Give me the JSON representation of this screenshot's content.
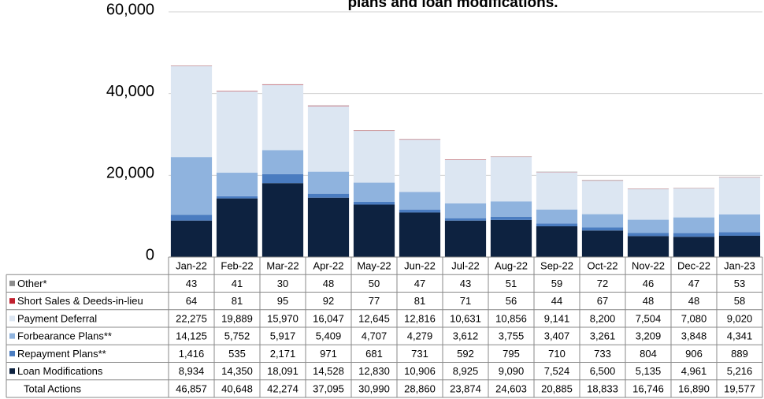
{
  "chart_data": {
    "type": "stacked_bar",
    "title": "plans and loan modifications.",
    "categories": [
      "Jan-22",
      "Feb-22",
      "Mar-22",
      "Apr-22",
      "May-22",
      "Jun-22",
      "Jul-22",
      "Aug-22",
      "Sep-22",
      "Oct-22",
      "Nov-22",
      "Dec-22",
      "Jan-23"
    ],
    "series": [
      {
        "name": "Other*",
        "color": "#8c8c8c",
        "values": [
          43,
          41,
          30,
          48,
          50,
          47,
          43,
          51,
          59,
          72,
          46,
          47,
          53
        ],
        "value_labels": [
          "43",
          "41",
          "30",
          "48",
          "50",
          "47",
          "43",
          "51",
          "59",
          "72",
          "46",
          "47",
          "53"
        ]
      },
      {
        "name": "Short Sales & Deeds-in-lieu",
        "color": "#c0202e",
        "values": [
          64,
          81,
          95,
          92,
          77,
          81,
          71,
          56,
          44,
          67,
          48,
          48,
          58
        ],
        "value_labels": [
          "64",
          "81",
          "95",
          "92",
          "77",
          "81",
          "71",
          "56",
          "44",
          "67",
          "48",
          "48",
          "58"
        ]
      },
      {
        "name": "Payment Deferral",
        "color": "#dce6f2",
        "values": [
          22275,
          19889,
          15970,
          16047,
          12645,
          12816,
          10631,
          10856,
          9141,
          8200,
          7504,
          7080,
          9020
        ],
        "value_labels": [
          "22,275",
          "19,889",
          "15,970",
          "16,047",
          "12,645",
          "12,816",
          "10,631",
          "10,856",
          "9,141",
          "8,200",
          "7,504",
          "7,080",
          "9,020"
        ]
      },
      {
        "name": "Forbearance Plans**",
        "color": "#8fb3de",
        "values": [
          14125,
          5752,
          5917,
          5409,
          4707,
          4279,
          3612,
          3755,
          3407,
          3261,
          3209,
          3848,
          4341
        ],
        "value_labels": [
          "14,125",
          "5,752",
          "5,917",
          "5,409",
          "4,707",
          "4,279",
          "3,612",
          "3,755",
          "3,407",
          "3,261",
          "3,209",
          "3,848",
          "4,341"
        ]
      },
      {
        "name": "Repayment Plans**",
        "color": "#4a7cc0",
        "values": [
          1416,
          535,
          2171,
          971,
          681,
          731,
          592,
          795,
          710,
          733,
          804,
          906,
          889
        ],
        "value_labels": [
          "1,416",
          "535",
          "2,171",
          "971",
          "681",
          "731",
          "592",
          "795",
          "710",
          "733",
          "804",
          "906",
          "889"
        ]
      },
      {
        "name": "Loan Modifications",
        "color": "#0d2240",
        "values": [
          8934,
          14350,
          18091,
          14528,
          12830,
          10906,
          8925,
          9090,
          7524,
          6500,
          5135,
          4961,
          5216
        ],
        "value_labels": [
          "8,934",
          "14,350",
          "18,091",
          "14,528",
          "12,830",
          "10,906",
          "8,925",
          "9,090",
          "7,524",
          "6,500",
          "5,135",
          "4,961",
          "5,216"
        ]
      }
    ],
    "totals": {
      "name": "Total Actions",
      "values": [
        46857,
        40648,
        42274,
        37095,
        30990,
        28860,
        23874,
        24603,
        20885,
        18833,
        16746,
        16890,
        19577
      ],
      "value_labels": [
        "46,857",
        "40,648",
        "42,274",
        "37,095",
        "30,990",
        "28,860",
        "23,874",
        "24,603",
        "20,885",
        "18,833",
        "16,746",
        "16,890",
        "19,577"
      ]
    },
    "ylim": [
      0,
      60000
    ],
    "yticks": [
      0,
      {
        "value": 20000,
        "label": "20,000"
      },
      {
        "value": 40000,
        "label": "40,000"
      },
      {
        "value": 60000,
        "label": "60,000"
      }
    ],
    "grid": true
  }
}
